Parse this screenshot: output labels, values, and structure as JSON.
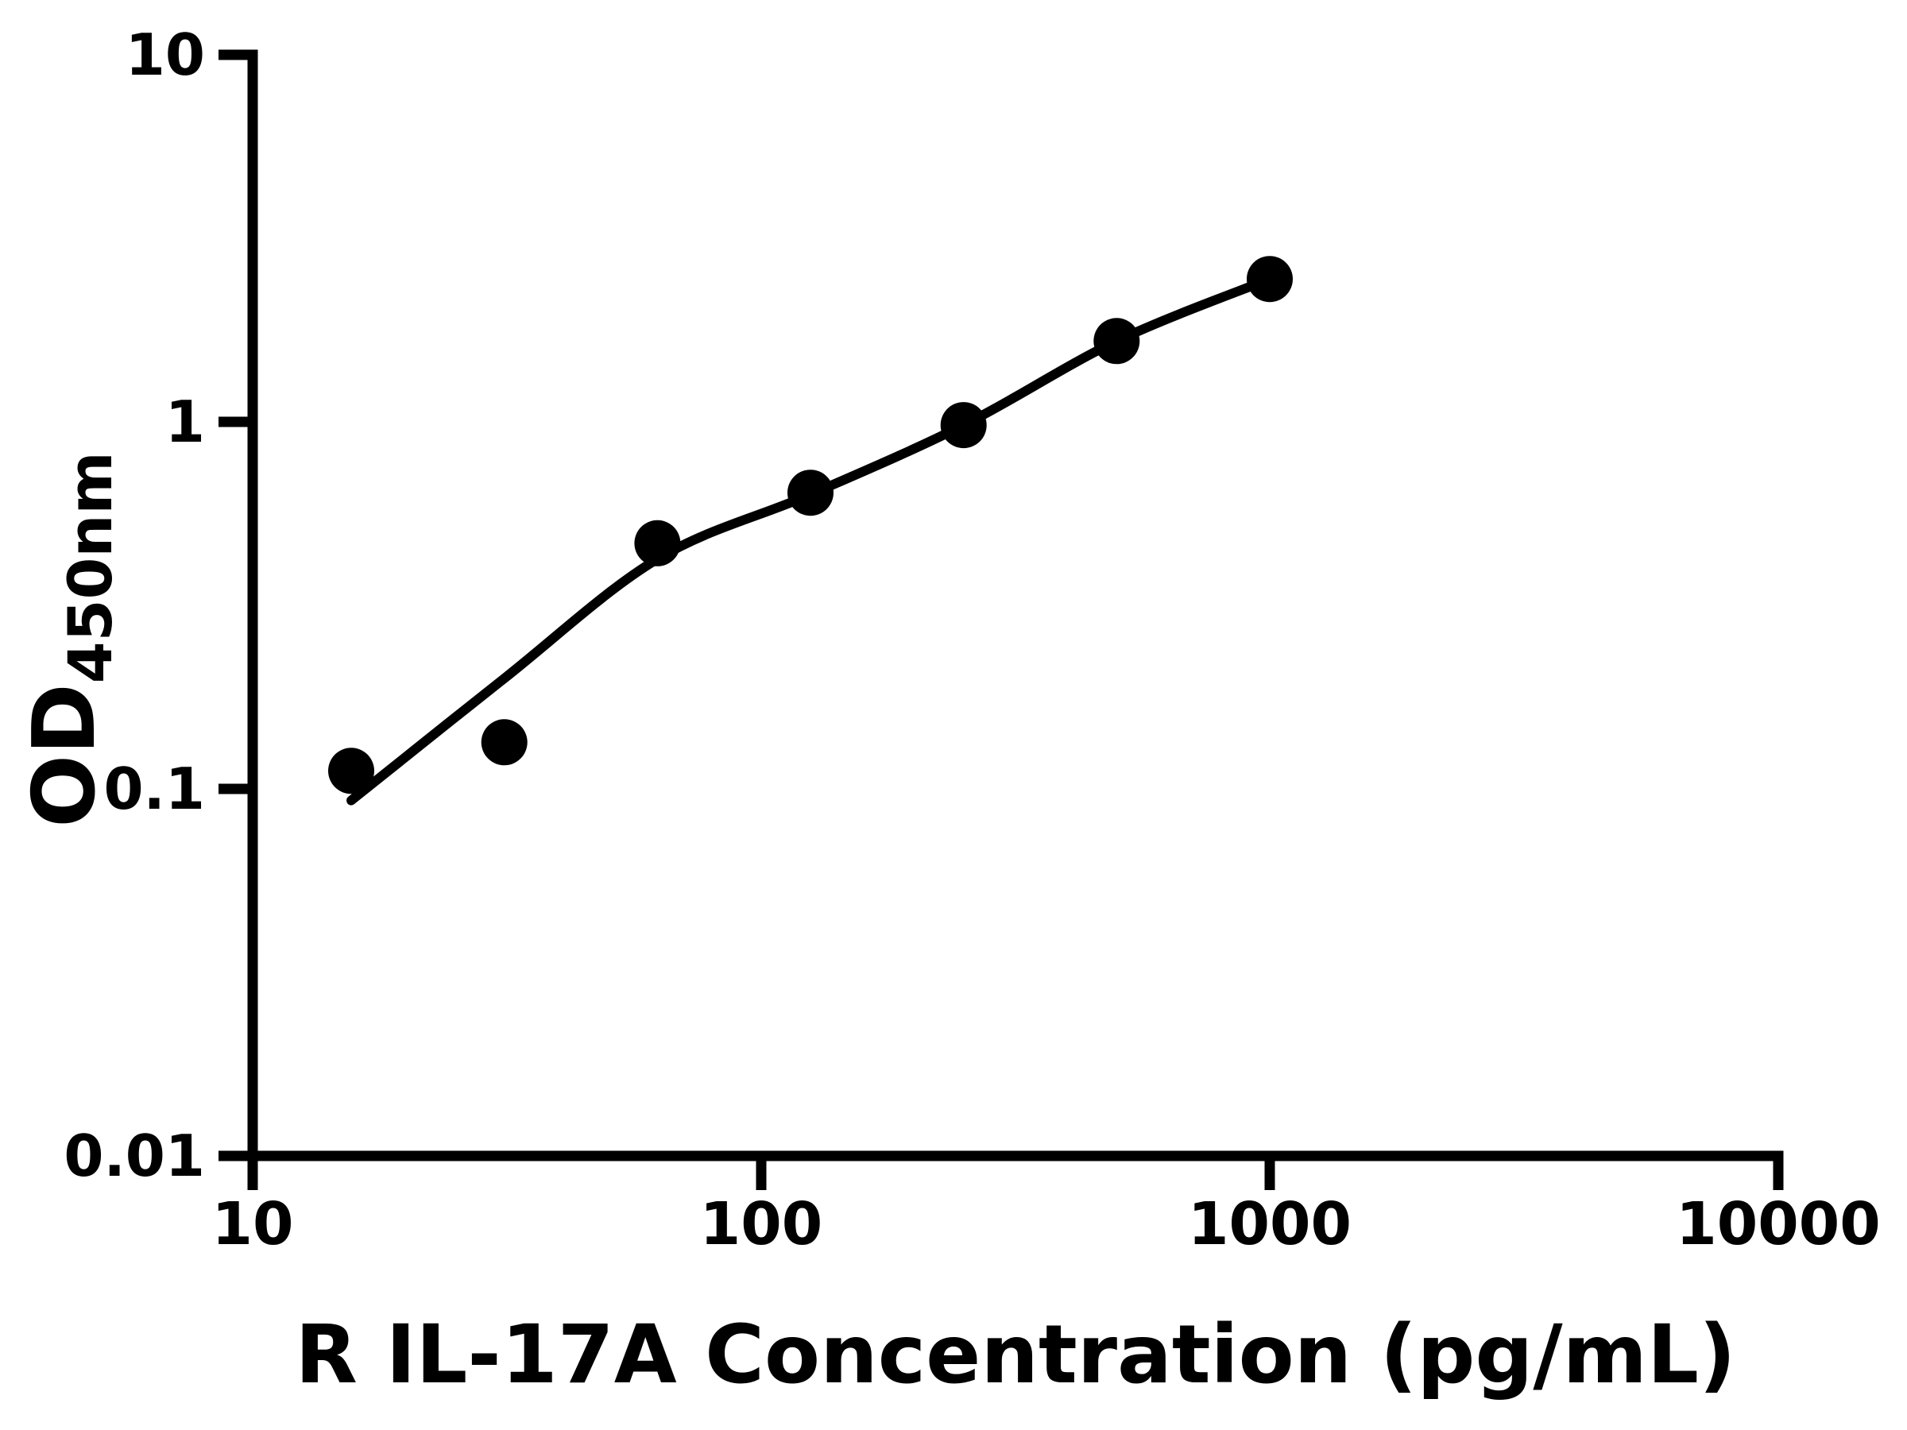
{
  "chart_data": {
    "type": "scatter",
    "title": "",
    "xlabel": "R IL-17A Concentration (pg/mL)",
    "ylabel_main": "OD",
    "ylabel_sub": "450nm",
    "x_scale": "log",
    "y_scale": "log",
    "xlim": [
      10,
      10000
    ],
    "ylim": [
      0.01,
      10
    ],
    "grid": "off",
    "legend": "none",
    "x_ticks": [
      {
        "value": 10,
        "label": "10"
      },
      {
        "value": 100,
        "label": "100"
      },
      {
        "value": 1000,
        "label": "1000"
      },
      {
        "value": 10000,
        "label": "10000"
      }
    ],
    "y_ticks": [
      {
        "value": 10,
        "label": "10"
      },
      {
        "value": 1,
        "label": "1"
      },
      {
        "value": 0.1,
        "label": "0.1"
      },
      {
        "value": 0.01,
        "label": "0.01"
      }
    ],
    "series": [
      {
        "name": "standard-data-points",
        "type": "scatter",
        "marker": "filled-circle",
        "points": [
          [
            15.625,
            0.112
          ],
          [
            31.25,
            0.134
          ],
          [
            62.5,
            0.467
          ],
          [
            125,
            0.641
          ],
          [
            250,
            0.98
          ],
          [
            500,
            1.66
          ],
          [
            1000,
            2.45
          ]
        ]
      },
      {
        "name": "fitted-standard-curve",
        "type": "line",
        "points": [
          [
            15.625,
            0.093
          ],
          [
            31.25,
            0.2
          ],
          [
            62.5,
            0.423
          ],
          [
            125,
            0.634
          ],
          [
            250,
            0.98
          ],
          [
            500,
            1.66
          ],
          [
            1000,
            2.45
          ]
        ]
      }
    ],
    "colors": {
      "foreground": "#000000",
      "background": "#ffffff"
    }
  }
}
